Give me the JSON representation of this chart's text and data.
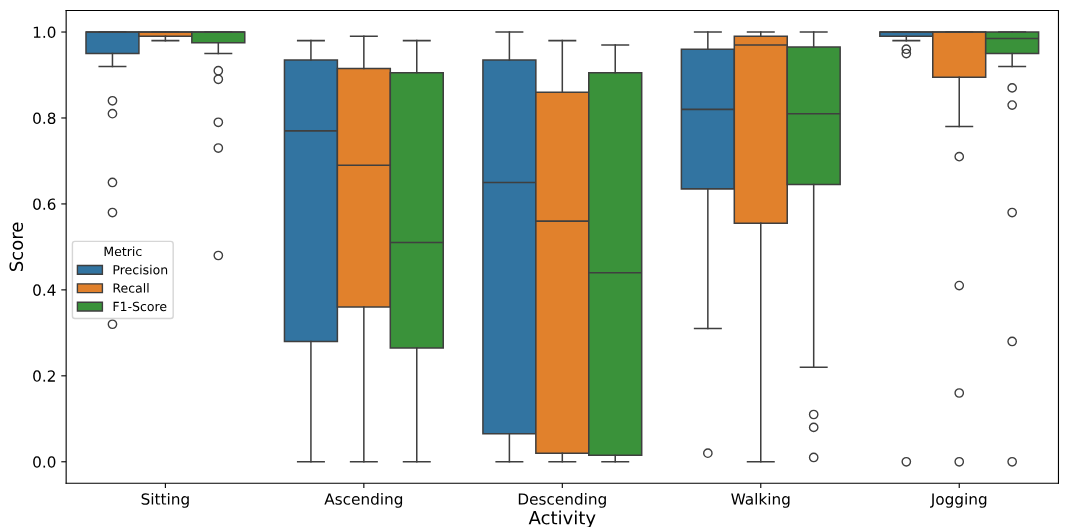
{
  "chart_data": {
    "type": "box",
    "xlabel": "Activity",
    "ylabel": "Score",
    "legend_title": "Metric",
    "legend": "left",
    "grid": false,
    "categories": [
      "Sitting",
      "Ascending",
      "Descending",
      "Walking",
      "Jogging"
    ],
    "ylim": [
      -0.05,
      1.05
    ],
    "yticks": [
      {
        "value": 0.0,
        "label": "0.0"
      },
      {
        "value": 0.2,
        "label": "0.2"
      },
      {
        "value": 0.4,
        "label": "0.4"
      },
      {
        "value": 0.6,
        "label": "0.6"
      },
      {
        "value": 0.8,
        "label": "0.8"
      },
      {
        "value": 1.0,
        "label": "1.0"
      }
    ],
    "series": [
      {
        "name": "Precision",
        "color": "#3274a1",
        "boxes": [
          {
            "low": 0.92,
            "q1": 0.95,
            "median": 1.0,
            "q3": 1.0,
            "high": 1.0,
            "outliers": [
              0.84,
              0.81,
              0.65,
              0.58,
              0.32
            ]
          },
          {
            "low": 0.0,
            "q1": 0.28,
            "median": 0.77,
            "q3": 0.935,
            "high": 0.98
          },
          {
            "low": 0.0,
            "q1": 0.065,
            "median": 0.65,
            "q3": 0.935,
            "high": 1.0
          },
          {
            "low": 0.31,
            "q1": 0.635,
            "median": 0.82,
            "q3": 0.96,
            "high": 1.0,
            "outliers": [
              0.02
            ]
          },
          {
            "low": 0.98,
            "q1": 0.99,
            "median": 1.0,
            "q3": 1.0,
            "high": 1.0,
            "outliers": [
              0.96,
              0.95,
              0.0
            ]
          }
        ]
      },
      {
        "name": "Recall",
        "color": "#e1812c",
        "boxes": [
          {
            "low": 0.98,
            "q1": 0.99,
            "median": 1.0,
            "q3": 1.0,
            "high": 1.0
          },
          {
            "low": 0.0,
            "q1": 0.36,
            "median": 0.69,
            "q3": 0.915,
            "high": 0.99
          },
          {
            "low": 0.0,
            "q1": 0.02,
            "median": 0.56,
            "q3": 0.86,
            "high": 0.98
          },
          {
            "low": 0.0,
            "q1": 0.555,
            "median": 0.97,
            "q3": 0.99,
            "high": 1.0
          },
          {
            "low": 0.78,
            "q1": 0.895,
            "median": 1.0,
            "q3": 1.0,
            "high": 1.0,
            "outliers": [
              0.71,
              0.41,
              0.16,
              0.0
            ]
          }
        ]
      },
      {
        "name": "F1-Score",
        "color": "#3a923a",
        "boxes": [
          {
            "low": 0.95,
            "q1": 0.975,
            "median": 1.0,
            "q3": 1.0,
            "high": 1.0,
            "outliers": [
              0.91,
              0.89,
              0.79,
              0.73,
              0.48
            ]
          },
          {
            "low": 0.0,
            "q1": 0.265,
            "median": 0.51,
            "q3": 0.905,
            "high": 0.98
          },
          {
            "low": 0.0,
            "q1": 0.015,
            "median": 0.44,
            "q3": 0.905,
            "high": 0.97
          },
          {
            "low": 0.22,
            "q1": 0.645,
            "median": 0.81,
            "q3": 0.965,
            "high": 1.0,
            "outliers": [
              0.11,
              0.08,
              0.01
            ]
          },
          {
            "low": 0.92,
            "q1": 0.95,
            "median": 0.985,
            "q3": 1.0,
            "high": 1.0,
            "outliers": [
              0.87,
              0.83,
              0.58,
              0.28,
              0.0
            ]
          }
        ]
      }
    ]
  }
}
